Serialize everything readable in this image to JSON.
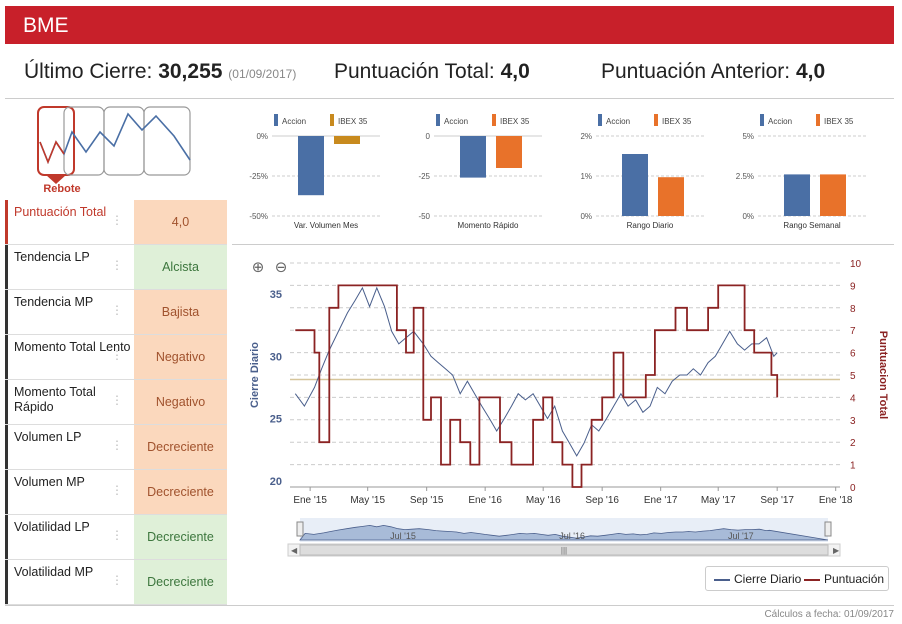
{
  "header": {
    "title": "BME"
  },
  "summary": {
    "ultimo_label": "Último Cierre:",
    "ultimo_value": "30,255",
    "ultimo_date": "(01/09/2017)",
    "total_label": "Puntuación Total:",
    "total_value": "4,0",
    "anterior_label": "Puntuación Anterior:",
    "anterior_value": "4,0"
  },
  "pattern": {
    "label": "Rebote",
    "color": "#c0392b"
  },
  "table": [
    {
      "label": "Puntuación Total",
      "value": "4,0",
      "style": "orange",
      "highlight": true
    },
    {
      "label": "Tendencia LP",
      "value": "Alcista",
      "style": "green"
    },
    {
      "label": "Tendencia MP",
      "value": "Bajista",
      "style": "orange"
    },
    {
      "label": "Momento Total Lento",
      "value": "Negativo",
      "style": "orange"
    },
    {
      "label": "Momento Total Rápido",
      "value": "Negativo",
      "style": "orange"
    },
    {
      "label": "Volumen LP",
      "value": "Decreciente",
      "style": "orange"
    },
    {
      "label": "Volumen MP",
      "value": "Decreciente",
      "style": "orange"
    },
    {
      "label": "Volatilidad LP",
      "value": "Decreciente",
      "style": "green"
    },
    {
      "label": "Volatilidad MP",
      "value": "Decreciente",
      "style": "green"
    }
  ],
  "footer": "Cálculos a fecha: 01/09/2017",
  "chart_data": [
    {
      "type": "bar",
      "xlabel": "Var. Volumen Mes",
      "legend": [
        "Accion",
        "IBEX 35"
      ],
      "colors": [
        "#4a6fa5",
        "#c88a1e"
      ],
      "yticks": [
        "0%",
        "-25%",
        "-50%"
      ],
      "ylim": [
        -50,
        0
      ],
      "values": [
        -37,
        -5
      ]
    },
    {
      "type": "bar",
      "xlabel": "Momento Rápido",
      "legend": [
        "Accion",
        "IBEX 35"
      ],
      "colors": [
        "#4a6fa5",
        "#e8722a"
      ],
      "yticks": [
        "0",
        "-25",
        "-50"
      ],
      "ylim": [
        -50,
        0
      ],
      "values": [
        -26,
        -20
      ]
    },
    {
      "type": "bar",
      "xlabel": "Rango Diario",
      "legend": [
        "Accion",
        "IBEX 35"
      ],
      "colors": [
        "#4a6fa5",
        "#e8722a"
      ],
      "yticks": [
        "2%",
        "1%",
        "0%"
      ],
      "ylim": [
        0,
        2
      ],
      "values": [
        1.55,
        0.97
      ]
    },
    {
      "type": "bar",
      "xlabel": "Rango Semanal",
      "legend": [
        "Accion",
        "IBEX 35"
      ],
      "colors": [
        "#4a6fa5",
        "#e8722a"
      ],
      "yticks": [
        "5%",
        "2.5%",
        "0%"
      ],
      "ylim": [
        0,
        5
      ],
      "values": [
        2.6,
        2.6
      ]
    },
    {
      "type": "line",
      "ylabel_left": "Cierre Diario",
      "ylabel_right": "Puntuacion Total",
      "yticks_left": [
        "35",
        "30",
        "25",
        "20"
      ],
      "yticks_right": [
        "10",
        "9",
        "8",
        "7",
        "6",
        "5",
        "4",
        "3",
        "2",
        "1",
        "0"
      ],
      "ylim_left": [
        19.5,
        37.5
      ],
      "ylim_right": [
        0,
        10
      ],
      "xlim": [
        "2014-11-20",
        "2018-01-10"
      ],
      "xticks": [
        "Ene '15",
        "May '15",
        "Sep '15",
        "Ene '16",
        "May '16",
        "Sep '16",
        "Ene '17",
        "May '17",
        "Sep '17",
        "Ene '18"
      ],
      "reference_line": 4.8,
      "series": [
        {
          "name": "Cierre Diario",
          "color": "#4a5f8c",
          "x": [
            "2014-12-01",
            "2014-12-20",
            "2015-01-10",
            "2015-01-25",
            "2015-02-10",
            "2015-03-01",
            "2015-03-20",
            "2015-04-05",
            "2015-04-20",
            "2015-05-05",
            "2015-05-20",
            "2015-06-05",
            "2015-06-20",
            "2015-07-05",
            "2015-07-20",
            "2015-08-05",
            "2015-08-25",
            "2015-09-10",
            "2015-09-25",
            "2015-10-10",
            "2015-10-25",
            "2015-11-10",
            "2015-11-25",
            "2015-12-10",
            "2015-12-25",
            "2016-01-10",
            "2016-01-25",
            "2016-02-10",
            "2016-02-25",
            "2016-03-10",
            "2016-03-25",
            "2016-04-10",
            "2016-04-25",
            "2016-05-10",
            "2016-05-25",
            "2016-06-10",
            "2016-06-25",
            "2016-07-10",
            "2016-07-25",
            "2016-08-10",
            "2016-08-25",
            "2016-09-10",
            "2016-09-25",
            "2016-10-10",
            "2016-10-25",
            "2016-11-10",
            "2016-11-25",
            "2016-12-10",
            "2016-12-25",
            "2017-01-10",
            "2017-01-25",
            "2017-02-10",
            "2017-02-25",
            "2017-03-10",
            "2017-03-25",
            "2017-04-10",
            "2017-04-25",
            "2017-05-10",
            "2017-05-25",
            "2017-06-10",
            "2017-06-25",
            "2017-07-10",
            "2017-07-25",
            "2017-08-10",
            "2017-08-25",
            "2017-09-01"
          ],
          "values": [
            27,
            26,
            27.5,
            29,
            30.5,
            32,
            33.5,
            34.5,
            35.5,
            34,
            35.5,
            34,
            32,
            31,
            31.5,
            32,
            31,
            30,
            29.5,
            29,
            28.5,
            27,
            28,
            27,
            26,
            25,
            24,
            25,
            26,
            27,
            26.5,
            27,
            26,
            25,
            26,
            24,
            23,
            22,
            23,
            24.5,
            24,
            25,
            26,
            27,
            26,
            26.5,
            25.5,
            26,
            27.5,
            27,
            28,
            28.5,
            28.5,
            29,
            28.5,
            29.5,
            30,
            31,
            32,
            31,
            30.5,
            31,
            31,
            31.5,
            30,
            30.3
          ]
        },
        {
          "name": "Puntuación",
          "color": "#8b2323",
          "x": [
            "2014-12-01",
            "2015-01-10",
            "2015-01-20",
            "2015-02-10",
            "2015-03-01",
            "2015-06-10",
            "2015-07-01",
            "2015-07-20",
            "2015-08-05",
            "2015-08-25",
            "2015-09-10",
            "2015-10-01",
            "2015-10-20",
            "2015-11-10",
            "2015-12-01",
            "2015-12-20",
            "2016-01-10",
            "2016-02-01",
            "2016-02-25",
            "2016-03-20",
            "2016-04-10",
            "2016-05-01",
            "2016-05-20",
            "2016-06-10",
            "2016-07-01",
            "2016-07-20",
            "2016-08-10",
            "2016-09-01",
            "2016-09-25",
            "2016-10-15",
            "2016-11-05",
            "2016-12-01",
            "2016-12-20",
            "2017-01-10",
            "2017-02-01",
            "2017-02-25",
            "2017-03-20",
            "2017-04-10",
            "2017-05-01",
            "2017-06-01",
            "2017-06-25",
            "2017-07-15",
            "2017-08-01",
            "2017-08-20",
            "2017-09-01"
          ],
          "values": [
            7,
            6,
            2,
            8,
            9,
            9,
            7,
            6,
            8,
            3,
            4,
            1,
            3,
            2,
            1,
            4,
            4,
            2,
            1,
            1,
            3,
            4,
            2,
            1,
            0,
            1,
            3,
            4,
            6,
            4,
            4,
            5,
            7,
            7,
            8,
            7,
            7,
            8,
            9,
            9,
            7,
            6,
            6,
            5,
            4
          ]
        }
      ]
    }
  ],
  "navigator": {
    "labels": [
      "Jul '15",
      "Jul '16",
      "Jul '17"
    ],
    "scrollbar_icon": "|||"
  },
  "legend": [
    {
      "name": "Cierre Diario",
      "color": "#4a5f8c"
    },
    {
      "name": "Puntuación",
      "color": "#8b2323"
    }
  ],
  "icons": {
    "zoom_in": "zoom-in-icon",
    "zoom_out": "zoom-out-icon"
  }
}
